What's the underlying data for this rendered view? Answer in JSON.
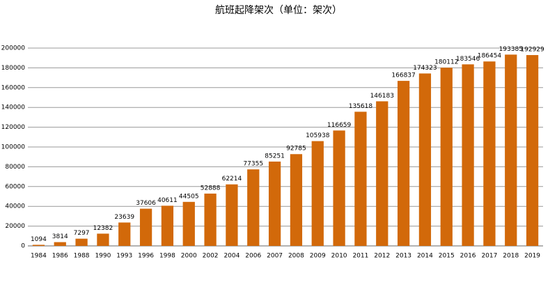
{
  "chart_data": {
    "type": "bar",
    "title": "航班起降架次（单位：架次）",
    "categories": [
      "1984",
      "1986",
      "1988",
      "1990",
      "1993",
      "1996",
      "1998",
      "2000",
      "2002",
      "2004",
      "2006",
      "2007",
      "2008",
      "2009",
      "2010",
      "2011",
      "2012",
      "2013",
      "2014",
      "2015",
      "2016",
      "2017",
      "2018",
      "2019"
    ],
    "values": [
      1094,
      3814,
      7297,
      12382,
      23639,
      37606,
      40611,
      44505,
      52888,
      62214,
      77355,
      85251,
      92785,
      105938,
      116659,
      135618,
      146183,
      166837,
      174323,
      180112,
      183546,
      186454,
      193385,
      192929
    ],
    "color": "#d2690a",
    "ylim": [
      0,
      200000
    ],
    "yticks": [
      0,
      20000,
      40000,
      60000,
      80000,
      100000,
      120000,
      140000,
      160000,
      180000,
      200000
    ],
    "grid": true
  }
}
